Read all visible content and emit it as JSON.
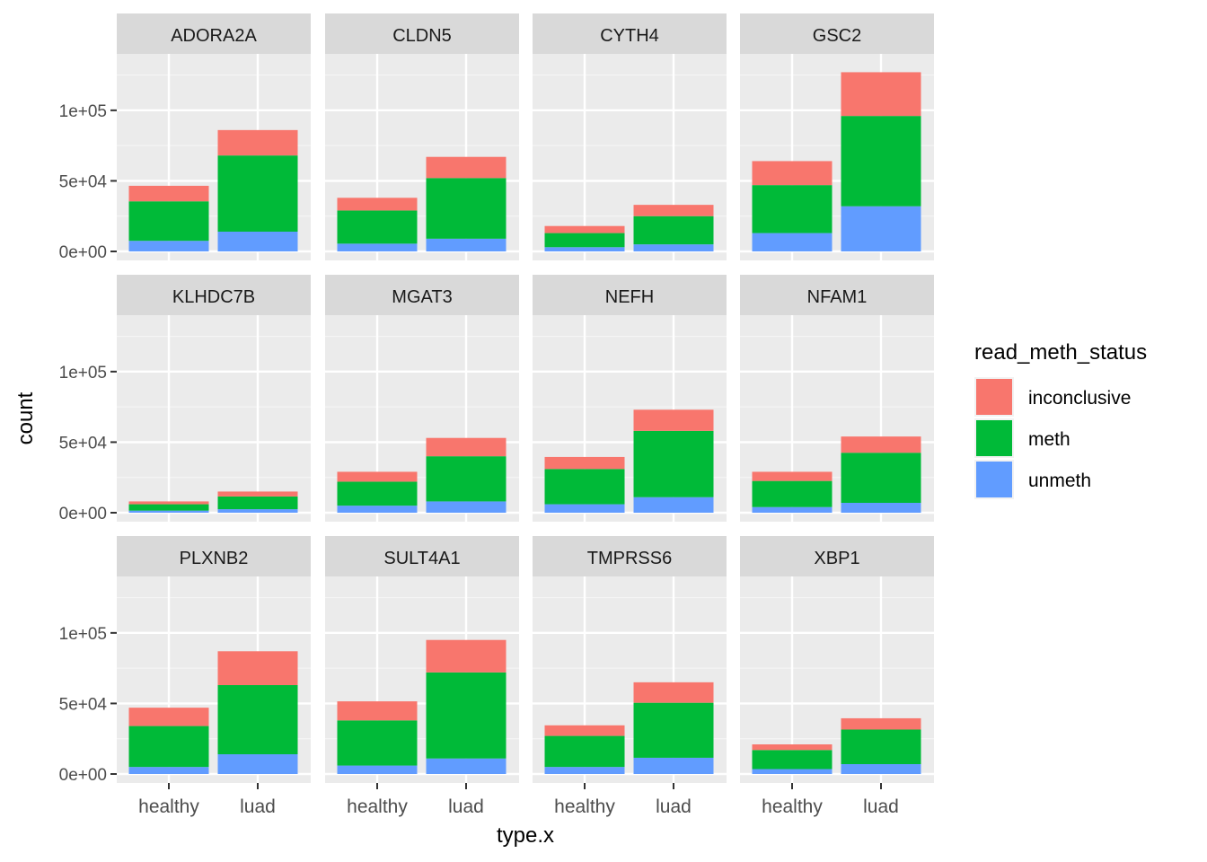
{
  "chart_data": {
    "type": "bar",
    "stacked": true,
    "xlabel": "type.x",
    "ylabel": "count",
    "ylim": [
      0,
      140000
    ],
    "y_ticks": [
      0,
      50000,
      100000
    ],
    "y_tick_labels": [
      "0e+00",
      "5e+04",
      "1e+05"
    ],
    "categories": [
      "healthy",
      "luad"
    ],
    "legend": {
      "title": "read_meth_status",
      "position": "right",
      "entries": [
        {
          "label": "inconclusive",
          "color": "#F8766D"
        },
        {
          "label": "meth",
          "color": "#00BA38"
        },
        {
          "label": "unmeth",
          "color": "#619CFF"
        }
      ]
    },
    "stack_order_bottom_to_top": [
      "unmeth",
      "meth",
      "inconclusive"
    ],
    "panels": [
      {
        "gene": "ADORA2A",
        "unmeth": [
          7500,
          14000
        ],
        "meth": [
          28000,
          54000
        ],
        "inconclusive": [
          11000,
          18000
        ]
      },
      {
        "gene": "CLDN5",
        "unmeth": [
          5500,
          9000
        ],
        "meth": [
          23500,
          43000
        ],
        "inconclusive": [
          9000,
          15000
        ]
      },
      {
        "gene": "CYTH4",
        "unmeth": [
          3000,
          5000
        ],
        "meth": [
          10000,
          20000
        ],
        "inconclusive": [
          5000,
          8000
        ]
      },
      {
        "gene": "GSC2",
        "unmeth": [
          13000,
          32000
        ],
        "meth": [
          34000,
          64000
        ],
        "inconclusive": [
          17000,
          31000
        ]
      },
      {
        "gene": "KLHDC7B",
        "unmeth": [
          1500,
          2500
        ],
        "meth": [
          4500,
          9000
        ],
        "inconclusive": [
          2000,
          3500
        ]
      },
      {
        "gene": "MGAT3",
        "unmeth": [
          5000,
          8000
        ],
        "meth": [
          17000,
          32000
        ],
        "inconclusive": [
          7000,
          13000
        ]
      },
      {
        "gene": "NEFH",
        "unmeth": [
          6000,
          11000
        ],
        "meth": [
          25000,
          47000
        ],
        "inconclusive": [
          8500,
          15000
        ]
      },
      {
        "gene": "NFAM1",
        "unmeth": [
          4000,
          7000
        ],
        "meth": [
          18500,
          35500
        ],
        "inconclusive": [
          6500,
          11500
        ]
      },
      {
        "gene": "PLXNB2",
        "unmeth": [
          5000,
          14000
        ],
        "meth": [
          29000,
          49000
        ],
        "inconclusive": [
          13000,
          24000
        ]
      },
      {
        "gene": "SULT4A1",
        "unmeth": [
          6000,
          11000
        ],
        "meth": [
          32000,
          61000
        ],
        "inconclusive": [
          13500,
          23000
        ]
      },
      {
        "gene": "TMPRSS6",
        "unmeth": [
          5000,
          11500
        ],
        "meth": [
          22000,
          39000
        ],
        "inconclusive": [
          7500,
          14500
        ]
      },
      {
        "gene": "XBP1",
        "unmeth": [
          3500,
          7000
        ],
        "meth": [
          13500,
          24500
        ],
        "inconclusive": [
          4000,
          8000
        ]
      }
    ]
  }
}
